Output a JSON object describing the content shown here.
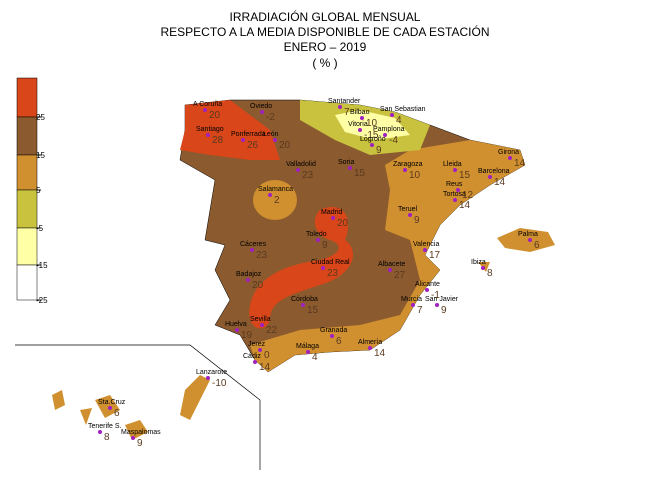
{
  "header": {
    "title_lines": [
      "IRRADIACIÓN GLOBAL MENSUAL",
      "RESPECTO A LA MEDIA DISPONIBLE DE CADA ESTACIÓN",
      "ENERO  – 2019",
      "( % )"
    ]
  },
  "legend": {
    "labels": [
      25,
      15,
      5,
      -5,
      -15,
      -25
    ],
    "colors": [
      "#d8461a",
      "#8b5a2e",
      "#d0902f",
      "#c8c23e",
      "#ffffa6",
      "#ffffff"
    ]
  },
  "stations": [
    {
      "name": "A Coruña",
      "value": 20
    },
    {
      "name": "Santiago",
      "value": 28
    },
    {
      "name": "Ponferrada",
      "value": 26
    },
    {
      "name": "León",
      "value": 20
    },
    {
      "name": "Oviedo",
      "value": -2
    },
    {
      "name": "Santander",
      "value": 7
    },
    {
      "name": "Bilbao",
      "value": 10
    },
    {
      "name": "San Sebastian",
      "value": 4
    },
    {
      "name": "Vitoria",
      "value": -15
    },
    {
      "name": "Pamplona",
      "value": -4
    },
    {
      "name": "Logroño",
      "value": 9
    },
    {
      "name": "Soria",
      "value": 15
    },
    {
      "name": "Zaragoza",
      "value": 10
    },
    {
      "name": "Lleida",
      "value": 15
    },
    {
      "name": "Girona",
      "value": 14
    },
    {
      "name": "Barcelona",
      "value": 14
    },
    {
      "name": "Reus",
      "value": 12
    },
    {
      "name": "Tortosa",
      "value": 14
    },
    {
      "name": "Valladolid",
      "value": 23
    },
    {
      "name": "Salamanca",
      "value": 2
    },
    {
      "name": "Madrid",
      "value": 20
    },
    {
      "name": "Toledo",
      "value": 9
    },
    {
      "name": "Teruel",
      "value": 9
    },
    {
      "name": "Cáceres",
      "value": 23
    },
    {
      "name": "Valencia",
      "value": 17
    },
    {
      "name": "Badajoz",
      "value": 20
    },
    {
      "name": "Ciudad Real",
      "value": 23
    },
    {
      "name": "Albacete",
      "value": 27
    },
    {
      "name": "Ibiza",
      "value": 8
    },
    {
      "name": "Palma",
      "value": 6
    },
    {
      "name": "Alicante",
      "value": -1
    },
    {
      "name": "Murcia",
      "value": 7
    },
    {
      "name": "San Javier",
      "value": 9
    },
    {
      "name": "Córdoba",
      "value": 15
    },
    {
      "name": "Huelva",
      "value": 19
    },
    {
      "name": "Sevilla",
      "value": 22
    },
    {
      "name": "Granada",
      "value": 6
    },
    {
      "name": "Almería",
      "value": 14
    },
    {
      "name": "Jerez",
      "value": 0
    },
    {
      "name": "Cádiz",
      "value": 14
    },
    {
      "name": "Málaga",
      "value": 4
    },
    {
      "name": "Lanzarote",
      "value": -10
    },
    {
      "name": "Sta.Cruz",
      "value": 6
    },
    {
      "name": "Tenerife S.",
      "value": 8
    },
    {
      "name": "Maspalomas",
      "value": 9
    }
  ]
}
